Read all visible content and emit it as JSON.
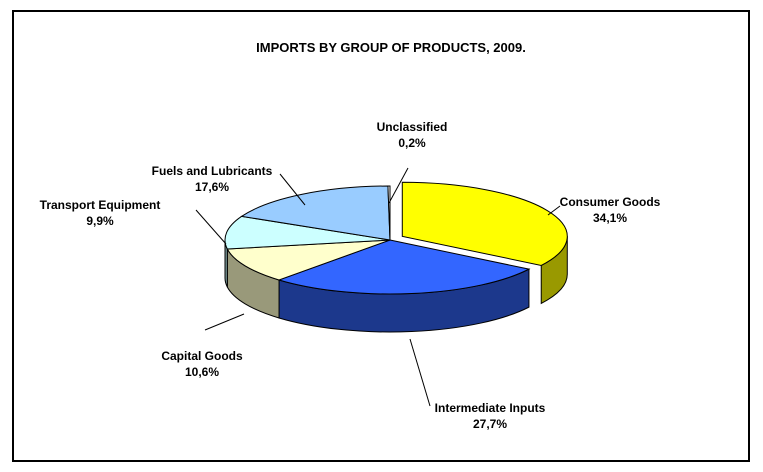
{
  "chart_data": {
    "type": "pie",
    "title": "IMPORTS BY GROUP OF PRODUCTS,  2009.",
    "decimal_separator": ",",
    "unit": "%",
    "style": "3d-exploded-pie",
    "slices": [
      {
        "name": "Consumer Goods",
        "value": 34.1,
        "label_value": "34,1%",
        "color": "#FFFF00"
      },
      {
        "name": "Intermediate Inputs",
        "value": 27.7,
        "label_value": "27,7%",
        "color": "#3366FF"
      },
      {
        "name": "Capital Goods",
        "value": 10.6,
        "label_value": "10,6%",
        "color": "#FFFFCC"
      },
      {
        "name": "Transport Equipment",
        "value": 9.9,
        "label_value": "9,9%",
        "color": "#CCFFFF"
      },
      {
        "name": "Fuels and Lubricants",
        "value": 17.6,
        "label_value": "17,6%",
        "color": "#99CCFF"
      },
      {
        "name": "Unclassified",
        "value": 0.2,
        "label_value": "0,2%",
        "color": "#FFFFFF"
      }
    ]
  }
}
